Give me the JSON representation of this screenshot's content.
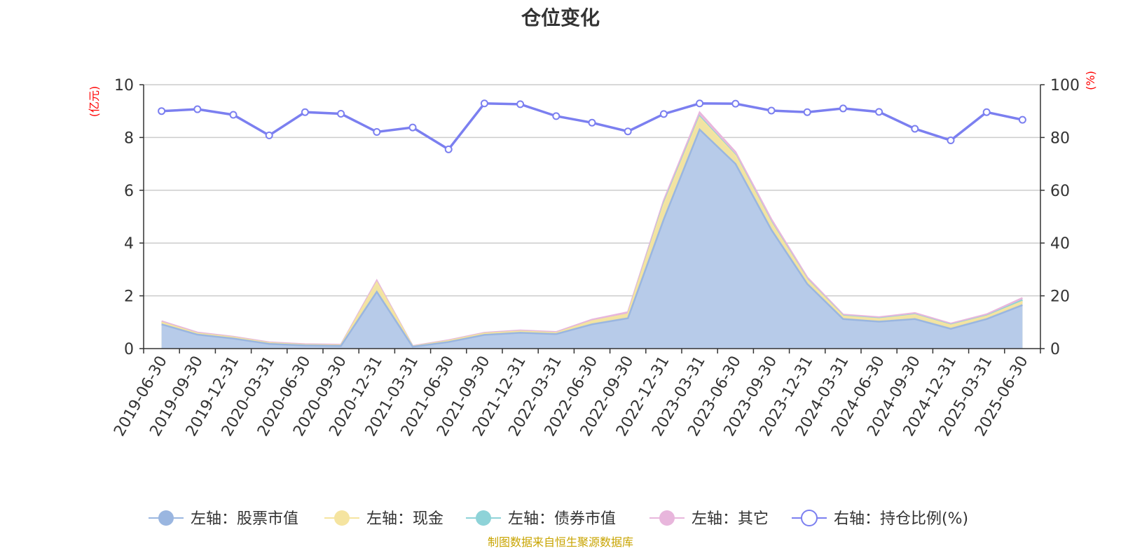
{
  "title": "仓位变化",
  "left_unit": "(亿元)",
  "right_unit": "(%)",
  "source_note": "制图数据来自恒生聚源数据库",
  "colors": {
    "stock": "#9ab6e0",
    "stock_fill": "#b7cbe9",
    "cash": "#f5e4a0",
    "bond": "#8ed3d8",
    "other": "#e8b6dc",
    "ratio": "#7b7ff0",
    "unit": "#ff0000",
    "source": "#c8a400"
  },
  "chart_data": {
    "type": "area",
    "categories": [
      "2019-06-30",
      "2019-09-30",
      "2019-12-31",
      "2020-03-31",
      "2020-06-30",
      "2020-09-30",
      "2020-12-31",
      "2021-03-31",
      "2021-06-30",
      "2021-09-30",
      "2021-12-31",
      "2022-03-31",
      "2022-06-30",
      "2022-09-30",
      "2022-12-31",
      "2023-03-31",
      "2023-06-30",
      "2023-09-30",
      "2023-12-31",
      "2024-03-31",
      "2024-06-30",
      "2024-09-30",
      "2024-12-31",
      "2025-03-31",
      "2025-06-30"
    ],
    "left_axis": {
      "min": 0,
      "max": 10,
      "ticks": [
        0,
        2,
        4,
        6,
        8,
        10
      ]
    },
    "right_axis": {
      "min": 0,
      "max": 100,
      "ticks": [
        0,
        20,
        40,
        60,
        80,
        100
      ]
    },
    "grid": true,
    "legend_position": "bottom",
    "series": [
      {
        "name": "左轴：股票市值",
        "key": "stock",
        "axis": "left",
        "stacked": true,
        "values": [
          0.92,
          0.53,
          0.38,
          0.18,
          0.12,
          0.1,
          2.15,
          0.07,
          0.25,
          0.52,
          0.6,
          0.55,
          0.92,
          1.15,
          4.9,
          8.3,
          7.0,
          4.5,
          2.45,
          1.12,
          1.02,
          1.12,
          0.75,
          1.12,
          1.65
        ]
      },
      {
        "name": "左轴：现金",
        "key": "cash",
        "axis": "left",
        "stacked": true,
        "values": [
          0.07,
          0.04,
          0.04,
          0.03,
          0.02,
          0.02,
          0.35,
          0.01,
          0.04,
          0.05,
          0.05,
          0.04,
          0.12,
          0.15,
          0.55,
          0.45,
          0.3,
          0.25,
          0.15,
          0.1,
          0.1,
          0.15,
          0.13,
          0.1,
          0.13
        ]
      },
      {
        "name": "左轴：债券市值",
        "key": "bond",
        "axis": "left",
        "stacked": true,
        "values": [
          0.0,
          0.0,
          0.0,
          0.0,
          0.0,
          0.0,
          0.0,
          0.0,
          0.0,
          0.0,
          0.0,
          0.0,
          0.0,
          0.0,
          0.05,
          0.05,
          0.03,
          0.03,
          0.02,
          0.02,
          0.02,
          0.02,
          0.02,
          0.02,
          0.06
        ]
      },
      {
        "name": "左轴：其它",
        "key": "other",
        "axis": "left",
        "stacked": true,
        "values": [
          0.05,
          0.04,
          0.03,
          0.03,
          0.03,
          0.03,
          0.08,
          0.02,
          0.03,
          0.03,
          0.04,
          0.04,
          0.06,
          0.08,
          0.12,
          0.15,
          0.12,
          0.12,
          0.08,
          0.05,
          0.05,
          0.06,
          0.05,
          0.06,
          0.08
        ]
      },
      {
        "name": "右轴：持仓比例(%)",
        "key": "ratio",
        "axis": "right",
        "type": "line",
        "values": [
          90.0,
          90.7,
          88.6,
          80.8,
          89.6,
          89.0,
          82.1,
          83.8,
          75.5,
          92.9,
          92.6,
          88.1,
          85.6,
          82.3,
          88.9,
          92.9,
          92.8,
          90.2,
          89.6,
          91.0,
          89.7,
          83.3,
          78.9,
          89.6,
          86.7
        ]
      }
    ]
  }
}
